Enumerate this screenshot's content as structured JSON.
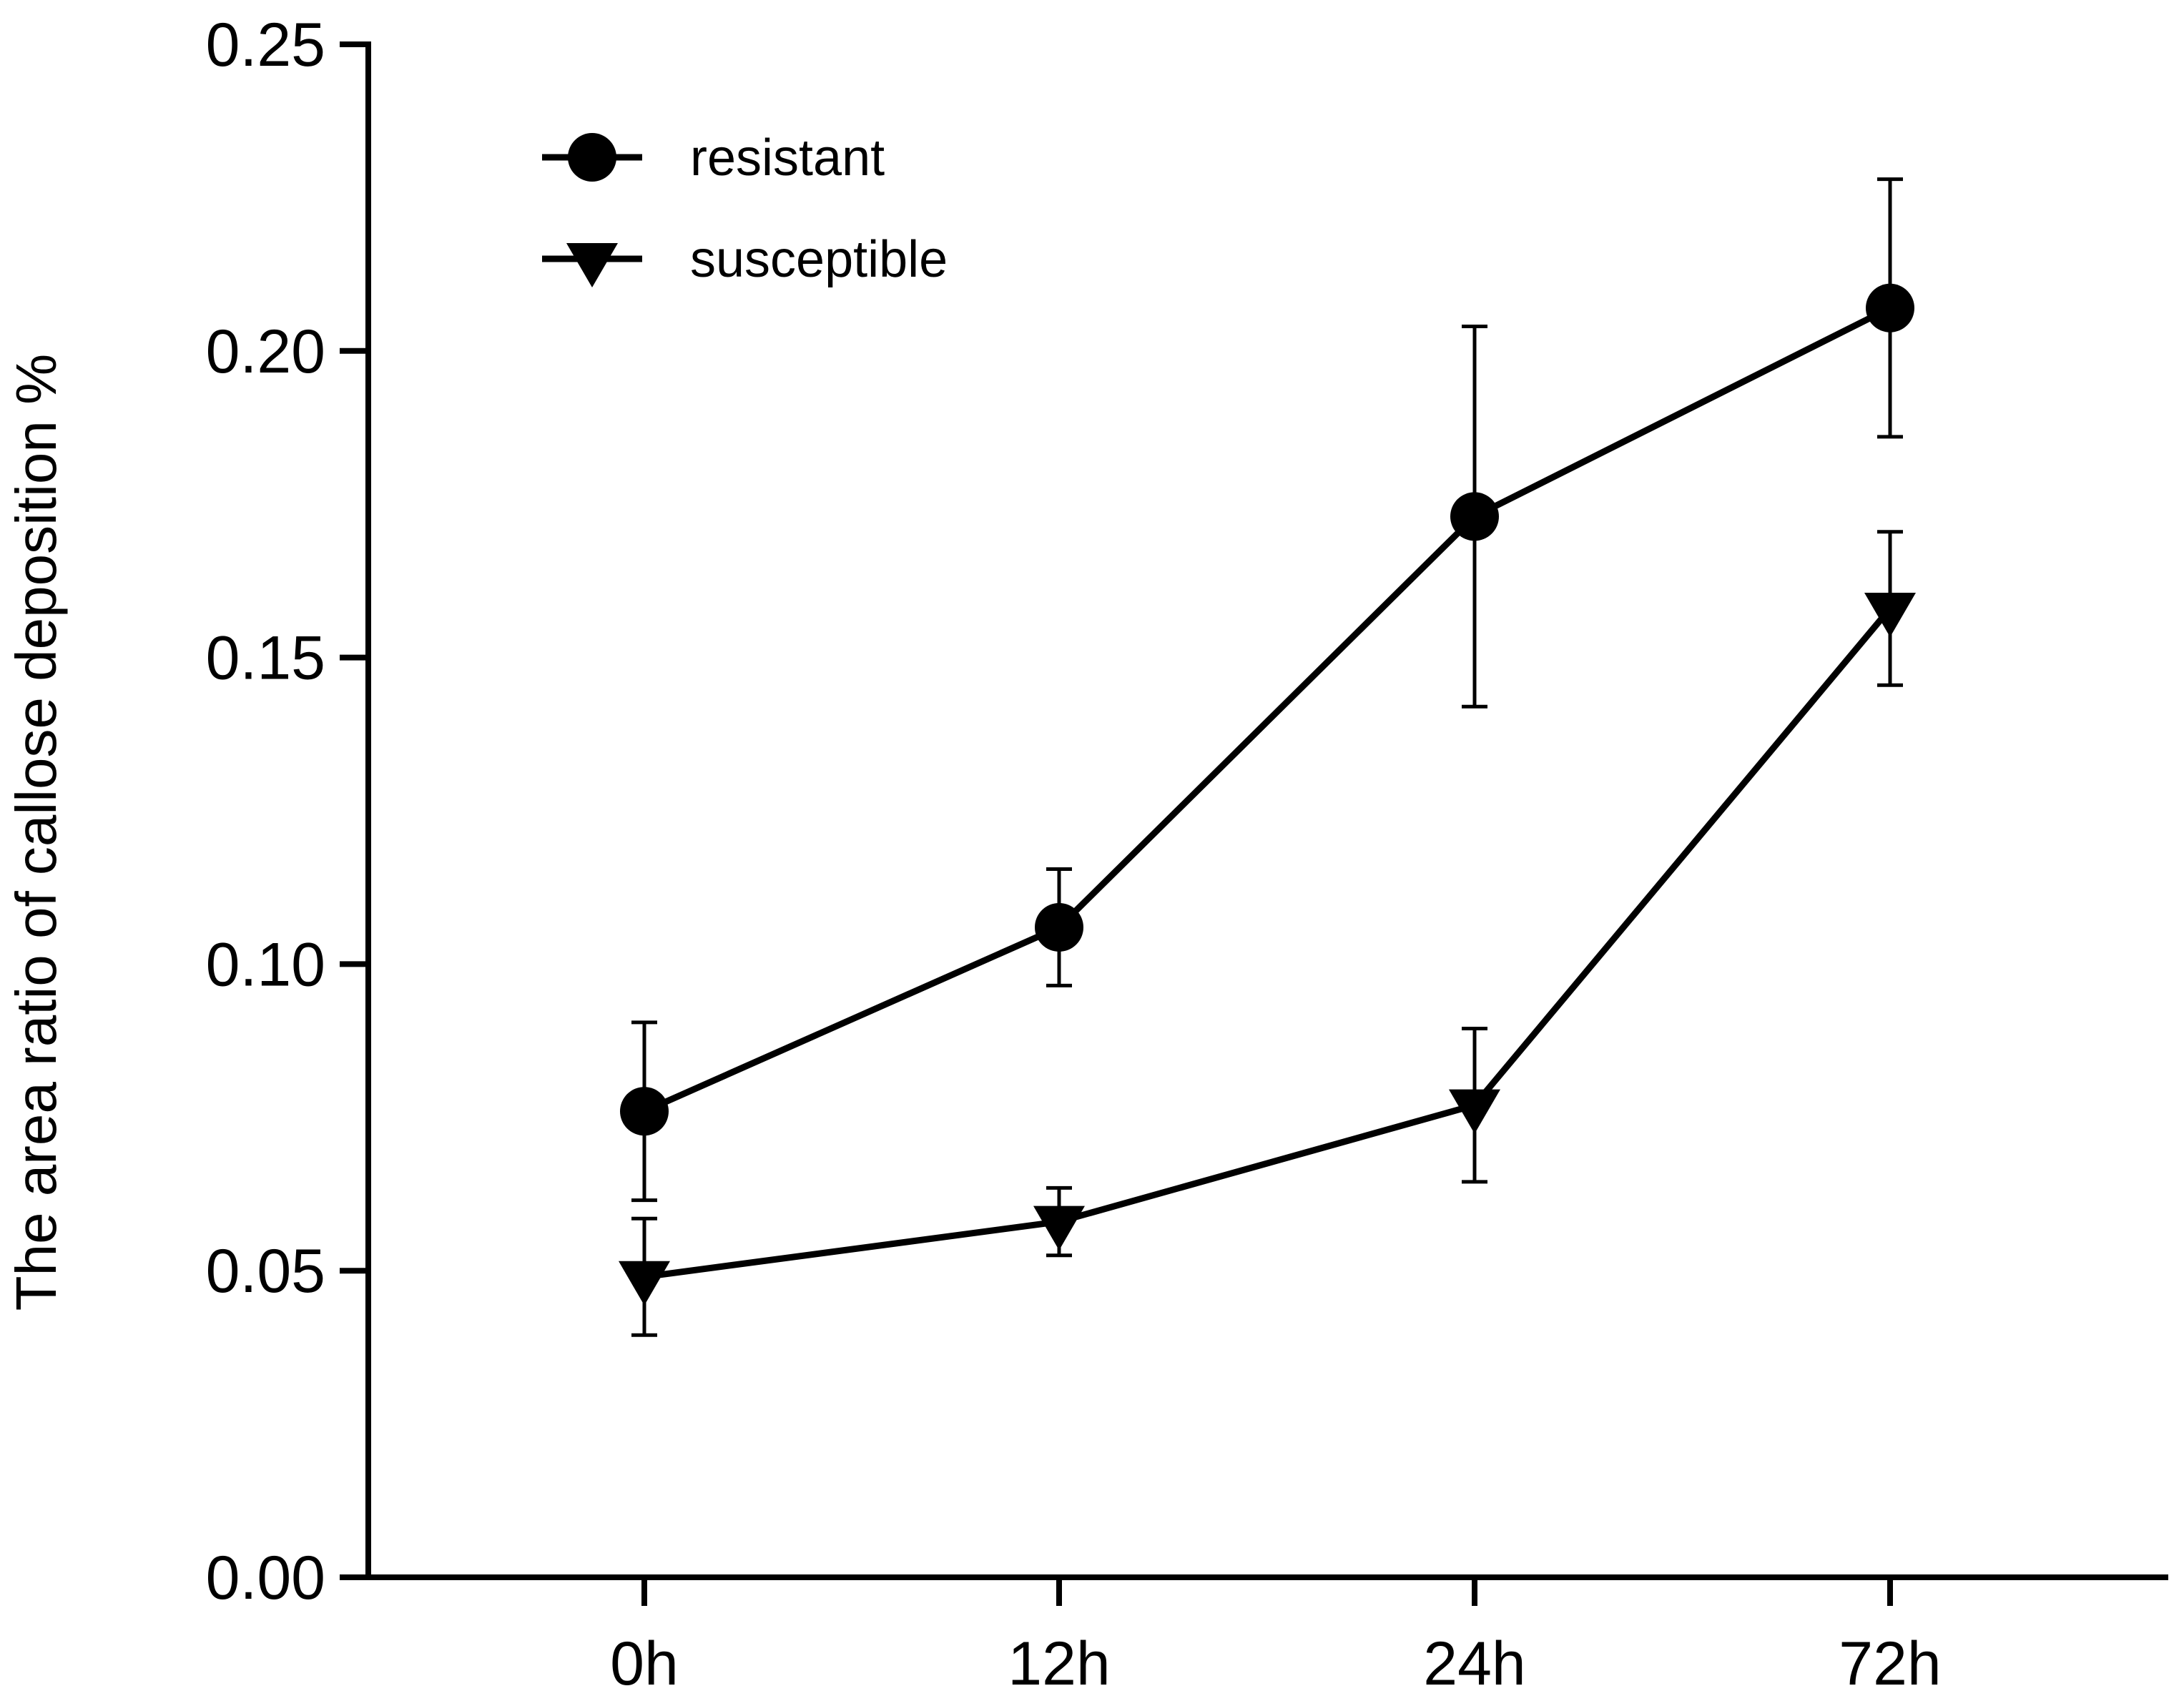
{
  "chart_data": {
    "type": "line",
    "title": "",
    "xlabel": "",
    "ylabel": "The area ratio of callose deposition %",
    "categories": [
      "0h",
      "12h",
      "24h",
      "72h"
    ],
    "ylim": [
      0,
      0.25
    ],
    "yticks": [
      0.0,
      0.05,
      0.1,
      0.15,
      0.2,
      0.25
    ],
    "ytick_labels": [
      "0.00",
      "0.05",
      "0.10",
      "0.15",
      "0.20",
      "0.25"
    ],
    "grid": false,
    "legend_position": "top-left",
    "series": [
      {
        "name": "resistant",
        "marker": "circle",
        "values": [
          0.076,
          0.106,
          0.173,
          0.207
        ],
        "error": [
          0.0145,
          0.0095,
          0.031,
          0.021
        ]
      },
      {
        "name": "susceptible",
        "marker": "triangle-down",
        "values": [
          0.049,
          0.058,
          0.077,
          0.158
        ],
        "error": [
          0.0095,
          0.0055,
          0.0125,
          0.0125
        ]
      }
    ],
    "colors": {
      "axis": "#000000",
      "series": "#000000",
      "background": "#ffffff"
    }
  }
}
